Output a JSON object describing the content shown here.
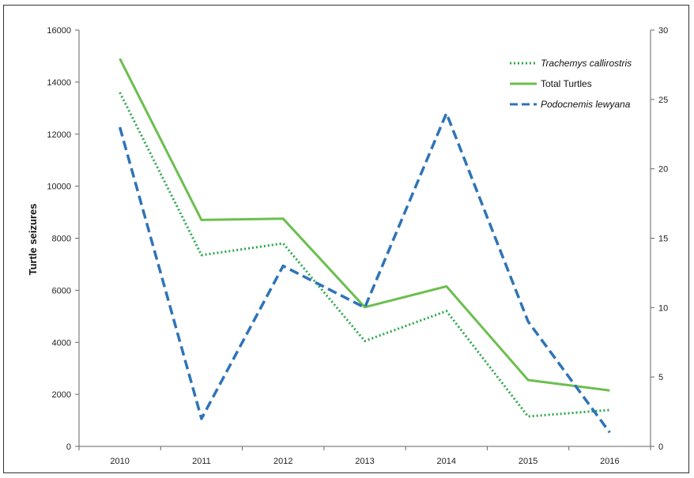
{
  "chart_data": {
    "type": "line",
    "title": "",
    "xlabel": "",
    "ylabel": "Turtle seizures",
    "categories": [
      "2010",
      "2011",
      "2012",
      "2013",
      "2014",
      "2015",
      "2016"
    ],
    "ylim": [
      0,
      16000
    ],
    "yticks": [
      "0",
      "2000",
      "4000",
      "6000",
      "8000",
      "10000",
      "12000",
      "14000",
      "16000"
    ],
    "y2lim": [
      0,
      30
    ],
    "y2ticks": [
      "0",
      "5",
      "10",
      "15",
      "20",
      "25",
      "30"
    ],
    "grid": false,
    "legend_position": "top-right",
    "series": [
      {
        "name": "Trachemys callirostris",
        "axis": "left",
        "style": "dotted",
        "color": "#2aa84a",
        "values": [
          13600,
          7350,
          7800,
          4050,
          5200,
          1150,
          1400
        ]
      },
      {
        "name": "Total Turtles",
        "axis": "left",
        "style": "solid",
        "color": "#6bbf4e",
        "values": [
          14900,
          8700,
          8750,
          5350,
          6150,
          2550,
          2150
        ]
      },
      {
        "name": "Podocnemis lewyana",
        "axis": "right",
        "style": "dashed",
        "color": "#2e73b8",
        "values": [
          23,
          2,
          13,
          10,
          24,
          9,
          1
        ]
      }
    ]
  }
}
